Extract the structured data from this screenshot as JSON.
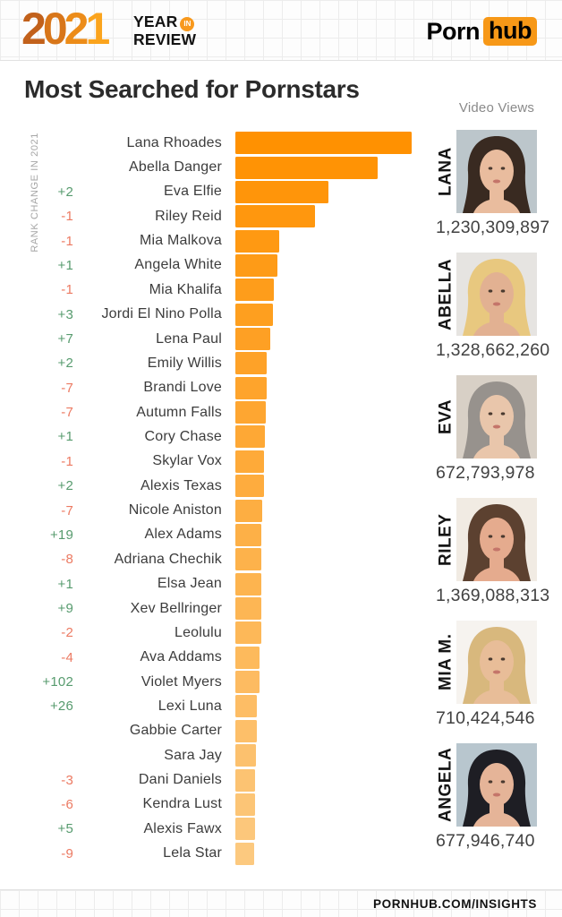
{
  "header": {
    "year": "2021",
    "year_label_line1": "YEAR",
    "year_label_in": "IN",
    "year_label_line2": "REVIEW",
    "brand_porn": "Porn",
    "brand_hub": "hub"
  },
  "title": "Most Searched for Pornstars",
  "axis_label": "RANK CHANGE IN 2021",
  "footer": {
    "url": "PORNHUB.COM/INSIGHTS"
  },
  "colors": {
    "bar_top": "#ff9101",
    "bar_bottom": "#fcc97f",
    "positive": "#579b6e",
    "negative": "#ec7a62",
    "brand_orange": "#f79817"
  },
  "chart_data": {
    "type": "bar",
    "orientation": "horizontal",
    "title": "Most Searched for Pornstars",
    "xlabel": "",
    "ylabel": "RANK CHANGE IN 2021",
    "value_note": "relative search volume, no numeric axis shown; values are estimated bar lengths in px",
    "rows": [
      {
        "rank": 1,
        "change": "",
        "name": "Lana Rhoades",
        "value": 197
      },
      {
        "rank": 2,
        "change": "",
        "name": "Abella Danger",
        "value": 159
      },
      {
        "rank": 3,
        "change": "+2",
        "name": "Eva Elfie",
        "value": 104
      },
      {
        "rank": 4,
        "change": "-1",
        "name": "Riley Reid",
        "value": 89
      },
      {
        "rank": 5,
        "change": "-1",
        "name": "Mia Malkova",
        "value": 49
      },
      {
        "rank": 6,
        "change": "+1",
        "name": "Angela White",
        "value": 47
      },
      {
        "rank": 7,
        "change": "-1",
        "name": "Mia Khalifa",
        "value": 43
      },
      {
        "rank": 8,
        "change": "+3",
        "name": "Jordi El Nino Polla",
        "value": 42
      },
      {
        "rank": 9,
        "change": "+7",
        "name": "Lena Paul",
        "value": 39
      },
      {
        "rank": 10,
        "change": "+2",
        "name": "Emily Willis",
        "value": 35
      },
      {
        "rank": 11,
        "change": "-7",
        "name": "Brandi Love",
        "value": 35
      },
      {
        "rank": 12,
        "change": "-7",
        "name": "Autumn Falls",
        "value": 34
      },
      {
        "rank": 13,
        "change": "+1",
        "name": "Cory Chase",
        "value": 33
      },
      {
        "rank": 14,
        "change": "-1",
        "name": "Skylar Vox",
        "value": 32
      },
      {
        "rank": 15,
        "change": "+2",
        "name": "Alexis Texas",
        "value": 32
      },
      {
        "rank": 16,
        "change": "-7",
        "name": "Nicole Aniston",
        "value": 30
      },
      {
        "rank": 17,
        "change": "+19",
        "name": "Alex Adams",
        "value": 29
      },
      {
        "rank": 18,
        "change": "-8",
        "name": "Adriana Chechik",
        "value": 29
      },
      {
        "rank": 19,
        "change": "+1",
        "name": "Elsa Jean",
        "value": 29
      },
      {
        "rank": 20,
        "change": "+9",
        "name": "Xev Bellringer",
        "value": 29
      },
      {
        "rank": 21,
        "change": "-2",
        "name": "Leolulu",
        "value": 29
      },
      {
        "rank": 22,
        "change": "-4",
        "name": "Ava Addams",
        "value": 27
      },
      {
        "rank": 23,
        "change": "+102",
        "name": "Violet Myers",
        "value": 27
      },
      {
        "rank": 24,
        "change": "+26",
        "name": "Lexi Luna",
        "value": 24
      },
      {
        "rank": 25,
        "change": "",
        "name": "Gabbie Carter",
        "value": 24
      },
      {
        "rank": 26,
        "change": "",
        "name": "Sara Jay",
        "value": 23
      },
      {
        "rank": 27,
        "change": "-3",
        "name": "Dani Daniels",
        "value": 22
      },
      {
        "rank": 28,
        "change": "-6",
        "name": "Kendra Lust",
        "value": 22
      },
      {
        "rank": 29,
        "change": "+5",
        "name": "Alexis Fawx",
        "value": 22
      },
      {
        "rank": 30,
        "change": "-9",
        "name": "Lela Star",
        "value": 21
      }
    ]
  },
  "video_views": {
    "label": "Video Views",
    "profiles": [
      {
        "name": "LANA",
        "views": "1,230,309,897",
        "photo": {
          "bg": "#bcc6cb",
          "hair": "#392a21",
          "skin": "#e9bc9e"
        }
      },
      {
        "name": "ABELLA",
        "views": "1,328,662,260",
        "photo": {
          "bg": "#e6e4e1",
          "hair": "#e8c87f",
          "skin": "#e2b192"
        }
      },
      {
        "name": "EVA",
        "views": "672,793,978",
        "photo": {
          "bg": "#d8d0c6",
          "hair": "#97928d",
          "skin": "#e9c6ab"
        }
      },
      {
        "name": "RILEY",
        "views": "1,369,088,313",
        "photo": {
          "bg": "#f1ebe3",
          "hair": "#5c4130",
          "skin": "#e5ab8e"
        }
      },
      {
        "name": "MIA M.",
        "views": "710,424,546",
        "photo": {
          "bg": "#f6f3ef",
          "hair": "#d8b87d",
          "skin": "#e8bd98"
        }
      },
      {
        "name": "ANGELA",
        "views": "677,946,740",
        "photo": {
          "bg": "#b8c6ce",
          "hair": "#1e1e24",
          "skin": "#e5b498"
        }
      }
    ]
  }
}
